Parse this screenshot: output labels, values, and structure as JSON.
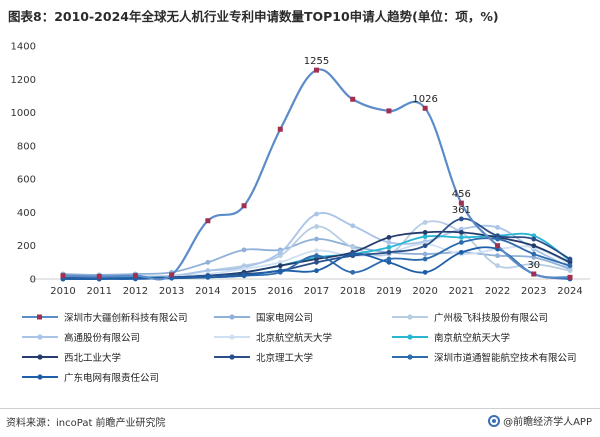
{
  "chart_data": {
    "type": "line",
    "title": "图表8：2010-2024年全球无人机行业专利申请数量TOP10申请人趋势(单位：项，%)",
    "categories": [
      "2010",
      "2011",
      "2012",
      "2013",
      "2014",
      "2015",
      "2016",
      "2017",
      "2018",
      "2019",
      "2020",
      "2021",
      "2022",
      "2023",
      "2024"
    ],
    "ylim": [
      0,
      1400
    ],
    "yticks": [
      0,
      200,
      400,
      600,
      800,
      1000,
      1200,
      1400
    ],
    "grid": false,
    "legend_position": "bottom",
    "series": [
      {
        "name": "深圳市大疆创新科技有限公司",
        "color": "#5b8cc9",
        "marker": "#a0304f",
        "values": [
          20,
          15,
          20,
          25,
          350,
          440,
          900,
          1255,
          1080,
          1010,
          1026,
          456,
          200,
          30,
          10
        ]
      },
      {
        "name": "国家电网公司",
        "color": "#8fb0d8",
        "marker": null,
        "values": [
          30,
          25,
          30,
          40,
          100,
          175,
          175,
          240,
          195,
          160,
          150,
          160,
          140,
          130,
          60
        ]
      },
      {
        "name": "广州极飞科技股份有限公司",
        "color": "#b7cde3",
        "marker": null,
        "values": [
          0,
          0,
          10,
          15,
          50,
          80,
          140,
          315,
          190,
          150,
          340,
          280,
          80,
          90,
          50
        ]
      },
      {
        "name": "高通股份有限公司",
        "color": "#a9c4e8",
        "marker": null,
        "values": [
          15,
          15,
          15,
          20,
          50,
          70,
          160,
          390,
          320,
          220,
          225,
          300,
          310,
          180,
          70
        ]
      },
      {
        "name": "北京航空航天大学",
        "color": "#cfe0f2",
        "marker": null,
        "values": [
          10,
          10,
          10,
          15,
          30,
          60,
          100,
          170,
          140,
          160,
          210,
          150,
          180,
          190,
          90
        ]
      },
      {
        "name": "南京航空航天大学",
        "color": "#29b6d2",
        "marker": null,
        "values": [
          5,
          5,
          10,
          10,
          20,
          40,
          80,
          130,
          150,
          190,
          255,
          250,
          260,
          260,
          110
        ]
      },
      {
        "name": "西北工业大学",
        "color": "#243b6b",
        "marker": null,
        "values": [
          5,
          5,
          5,
          10,
          20,
          40,
          80,
          120,
          160,
          250,
          280,
          280,
          250,
          200,
          100
        ]
      },
      {
        "name": "北京理工大学",
        "color": "#2a4f8a",
        "marker": null,
        "values": [
          5,
          5,
          5,
          10,
          20,
          30,
          50,
          100,
          140,
          160,
          200,
          361,
          260,
          240,
          120
        ]
      },
      {
        "name": "深圳市道通智能航空技术有限公司",
        "color": "#2f6cae",
        "marker": null,
        "values": [
          0,
          0,
          0,
          5,
          10,
          20,
          40,
          140,
          40,
          120,
          120,
          220,
          240,
          150,
          80
        ]
      },
      {
        "name": "广东电网有限责任公司",
        "color": "#1f5fa8",
        "marker": null,
        "values": [
          0,
          0,
          5,
          5,
          10,
          20,
          50,
          50,
          150,
          100,
          40,
          160,
          180,
          30,
          0
        ]
      }
    ],
    "data_labels": [
      {
        "category": "2017",
        "value": 1255,
        "text": "1255"
      },
      {
        "category": "2020",
        "value": 1026,
        "text": "1026"
      },
      {
        "category": "2021",
        "value": 456,
        "text": "456"
      },
      {
        "category": "2021",
        "value": 361,
        "text": "361"
      },
      {
        "category": "2023",
        "value": 30,
        "text": "30"
      }
    ]
  },
  "footer": {
    "source": "资料来源：incoPat 前瞻产业研究院",
    "brand": "@前瞻经济学人APP"
  }
}
